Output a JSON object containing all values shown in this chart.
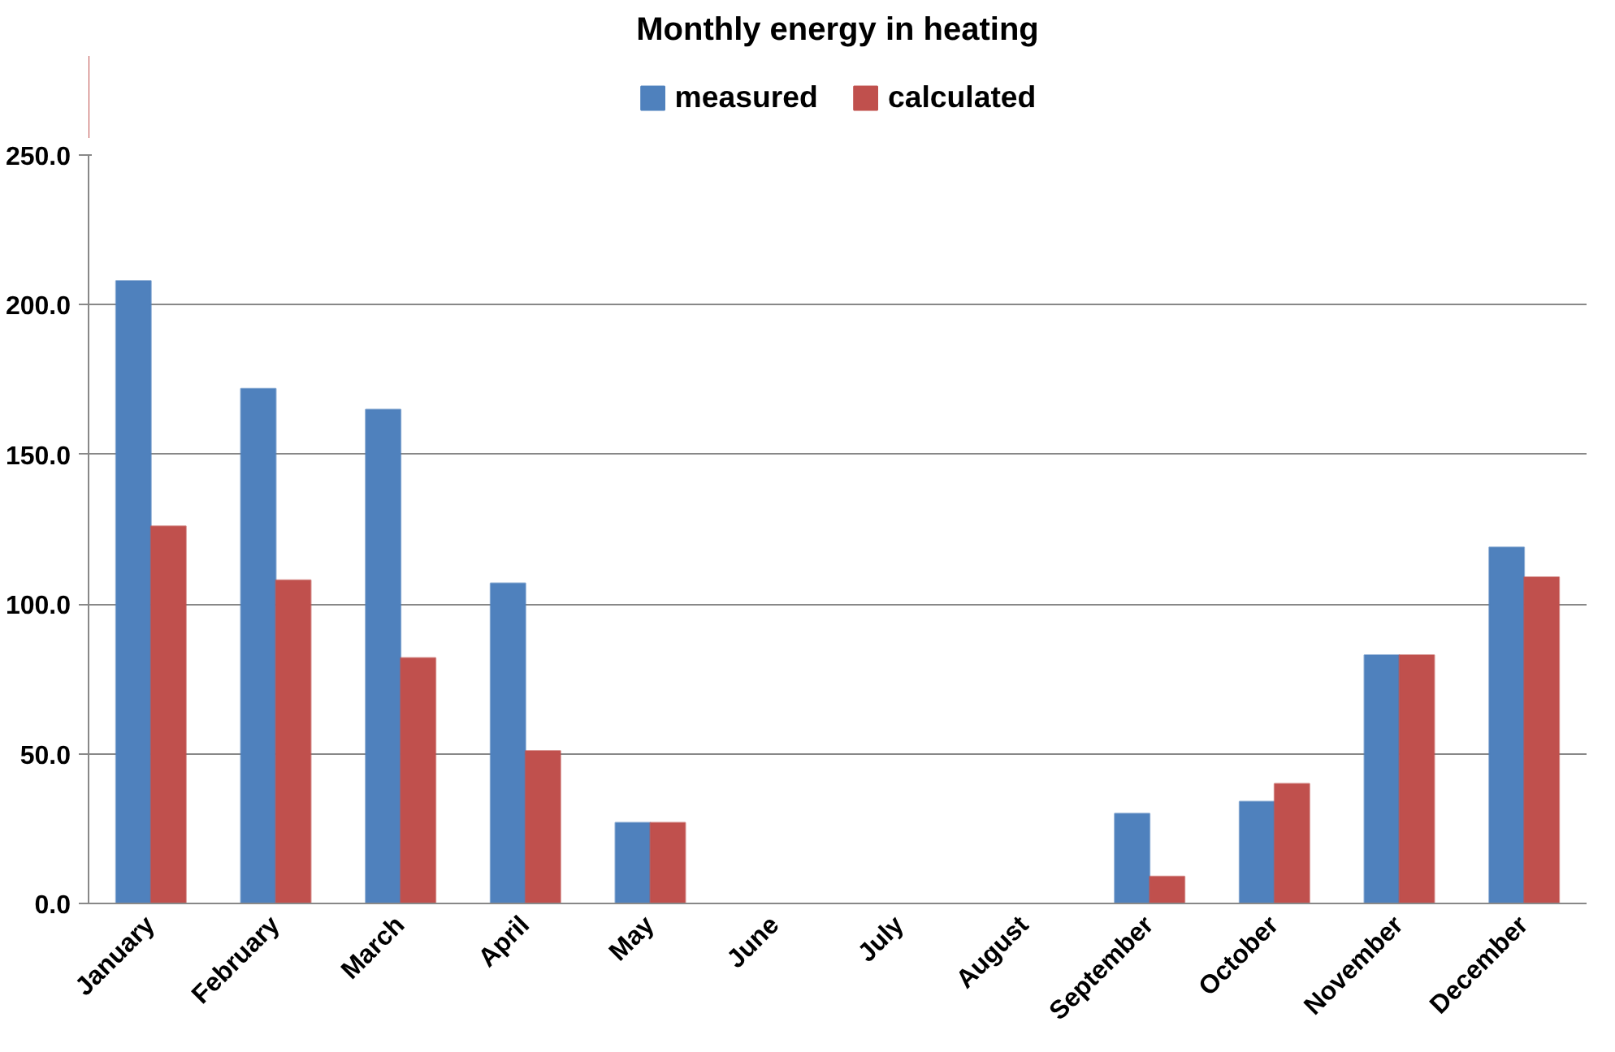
{
  "chart_data": {
    "type": "bar",
    "title": "Monthly energy in heating",
    "categories": [
      "January",
      "February",
      "March",
      "April",
      "May",
      "June",
      "July",
      "August",
      "September",
      "October",
      "November",
      "December"
    ],
    "series": [
      {
        "name": "measured",
        "color": "#4f81bd",
        "values": [
          208,
          172,
          165,
          107,
          27,
          null,
          null,
          null,
          30,
          34,
          83,
          119
        ]
      },
      {
        "name": "calculated",
        "color": "#c0504d",
        "values": [
          126,
          108,
          82,
          51,
          27,
          null,
          null,
          null,
          9,
          40,
          83,
          109
        ]
      }
    ],
    "ylim": [
      0,
      250
    ],
    "yticks": [
      {
        "value": 0,
        "label": "0.0"
      },
      {
        "value": 50,
        "label": "50.0"
      },
      {
        "value": 100,
        "label": "100.0"
      },
      {
        "value": 150,
        "label": "150.0"
      },
      {
        "value": 200,
        "label": "200.0"
      },
      {
        "value": 250,
        "label": "250.0"
      }
    ],
    "grid": "y",
    "legend": "top"
  }
}
